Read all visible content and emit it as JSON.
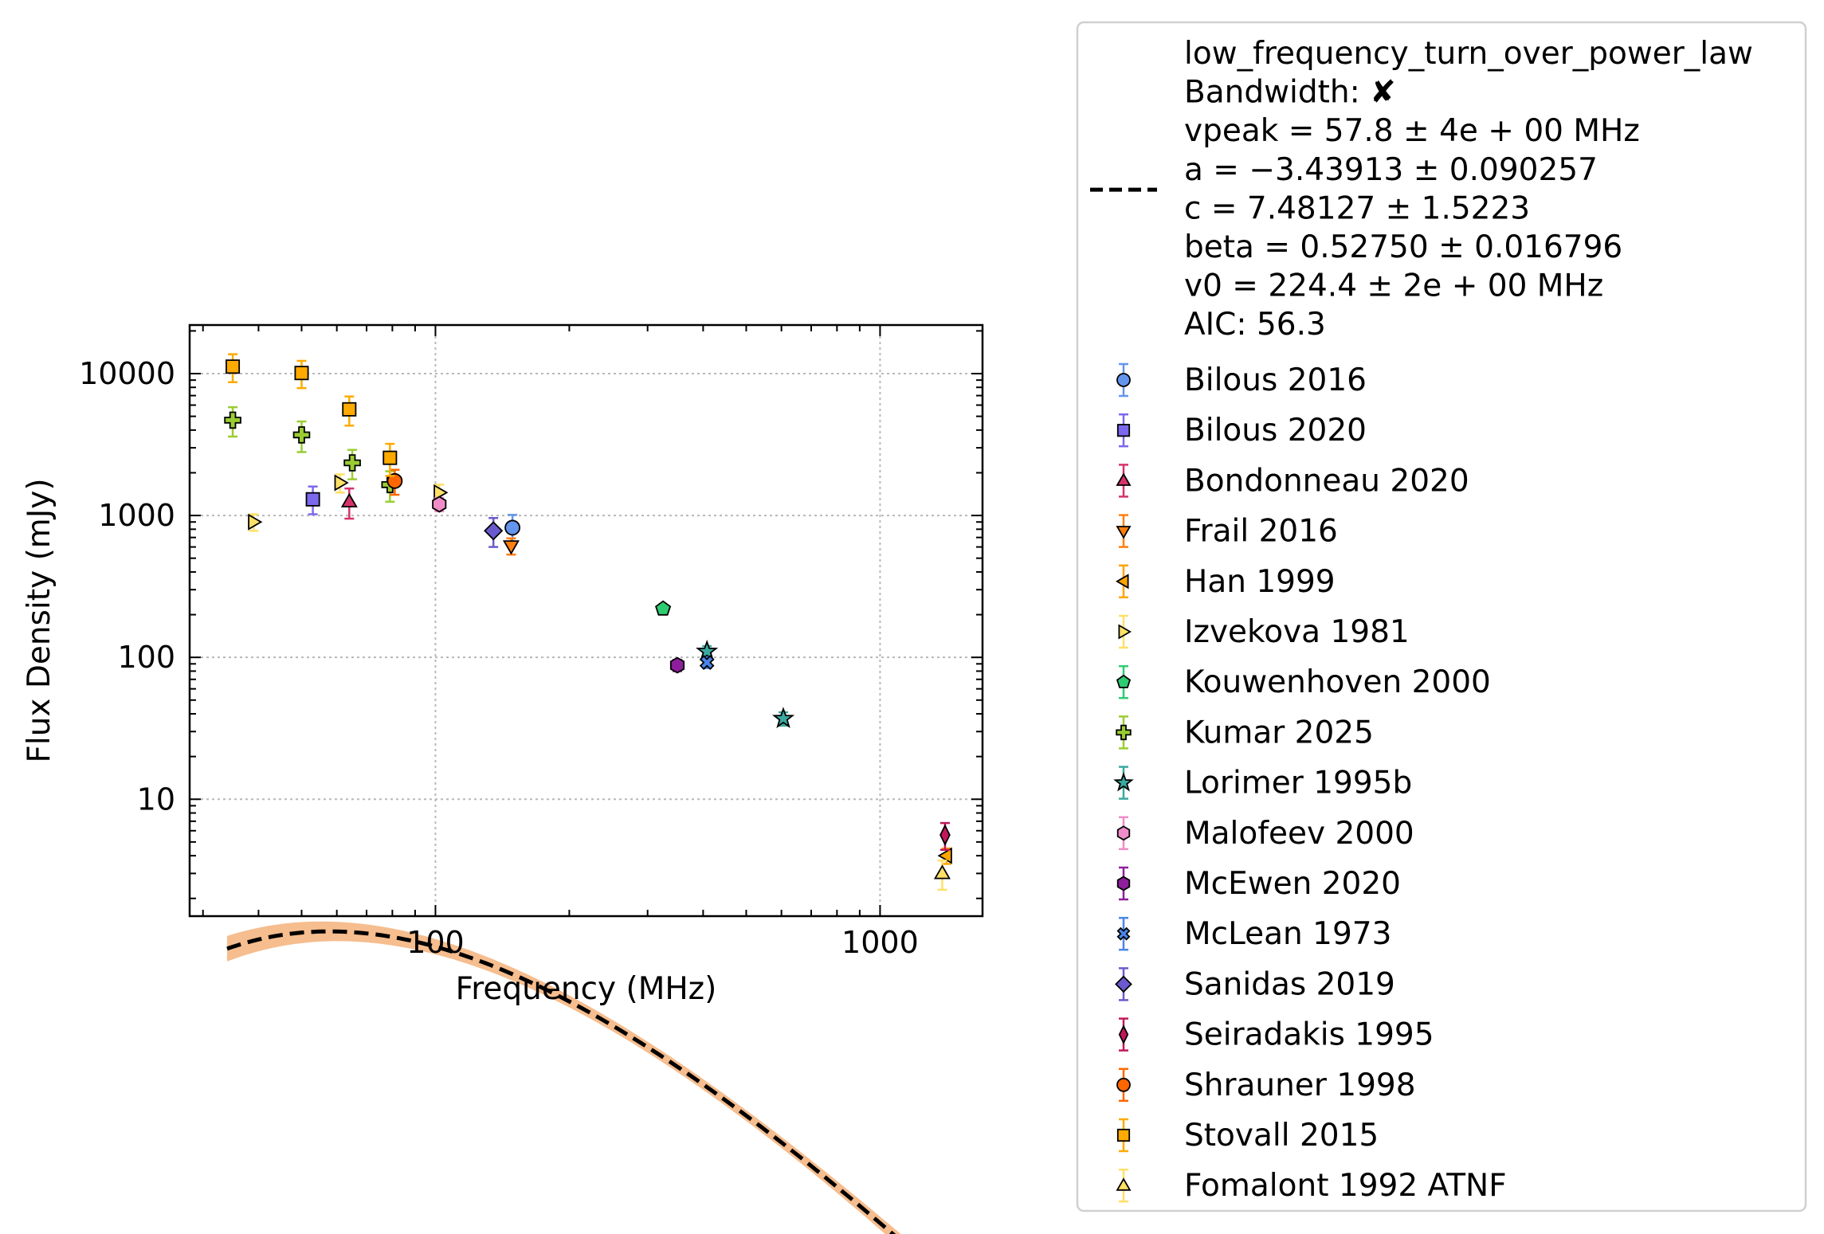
{
  "chart_data": {
    "type": "scatter",
    "title": "",
    "xlabel": "Frequency (MHz)",
    "ylabel": "Flux Density (mJy)",
    "xscale": "log",
    "yscale": "log",
    "xlim": [
      28,
      1700
    ],
    "ylim": [
      1.5,
      22000
    ],
    "xticks": [
      {
        "value": 100,
        "label": "100"
      },
      {
        "value": 1000,
        "label": "1000"
      }
    ],
    "yticks": [
      {
        "value": 10,
        "label": "10"
      },
      {
        "value": 100,
        "label": "100"
      },
      {
        "value": 1000,
        "label": "1000"
      },
      {
        "value": 10000,
        "label": "10000"
      }
    ],
    "grid": true,
    "legend_position": "outside-right",
    "fit": {
      "model": "low_frequency_turn_over_power_law",
      "label_lines": [
        "low_frequency_turn_over_power_law",
        "Bandwidth: ✘",
        "vpeak = 57.8 ± 4e + 00 MHz",
        "a = −3.43913 ± 0.090257",
        "c = 7.48127 ± 1.5223",
        "beta = 0.52750 ± 0.016796",
        "v0 = 224.4 ± 2e + 00 MHz",
        "AIC: 56.3"
      ],
      "params": {
        "vpeak": 57.8,
        "a": -3.43913,
        "c": 7.48127,
        "beta": 0.5275,
        "v0": 224.4
      },
      "x_range": [
        34,
        1450
      ],
      "line_color": "#000000",
      "band_color": "#f5b27a"
    },
    "series": [
      {
        "name": "Bilous 2016",
        "marker": "circle",
        "color": "#6495ed",
        "points": [
          {
            "x": 149,
            "y": 820,
            "yerr": [
              190,
              190
            ]
          }
        ]
      },
      {
        "name": "Bilous 2020",
        "marker": "square",
        "color": "#7b68ee",
        "points": [
          {
            "x": 53,
            "y": 1300,
            "yerr": [
              280,
              300
            ]
          }
        ]
      },
      {
        "name": "Bondonneau 2020",
        "marker": "triangle-up",
        "color": "#d6336c",
        "points": [
          {
            "x": 64,
            "y": 1250,
            "yerr": [
              300,
              300
            ]
          }
        ]
      },
      {
        "name": "Frail 2016",
        "marker": "triangle-down",
        "color": "#ff7f0e",
        "points": [
          {
            "x": 148,
            "y": 610,
            "yerr": [
              80,
              80
            ]
          }
        ]
      },
      {
        "name": "Han 1999",
        "marker": "triangle-left",
        "color": "#ffa500",
        "points": [
          {
            "x": 1410,
            "y": 4.0,
            "yerr": [
              0.5,
              0.5
            ]
          }
        ]
      },
      {
        "name": "Izvekova 1981",
        "marker": "triangle-right",
        "color": "#ffe066",
        "points": [
          {
            "x": 39,
            "y": 900,
            "yerr": [
              120,
              120
            ]
          },
          {
            "x": 61,
            "y": 1700,
            "yerr": [
              250,
              250
            ]
          },
          {
            "x": 102,
            "y": 1450,
            "yerr": [
              200,
              200
            ]
          }
        ]
      },
      {
        "name": "Kouwenhoven 2000",
        "marker": "pentagon",
        "color": "#2ecc71",
        "points": [
          {
            "x": 325,
            "y": 220,
            "yerr": [
              15,
              15
            ]
          }
        ]
      },
      {
        "name": "Kumar 2025",
        "marker": "plus",
        "color": "#9acd32",
        "points": [
          {
            "x": 35,
            "y": 4700,
            "yerr": [
              1100,
              1100
            ]
          },
          {
            "x": 50,
            "y": 3700,
            "yerr": [
              900,
              900
            ]
          },
          {
            "x": 65,
            "y": 2350,
            "yerr": [
              550,
              550
            ]
          },
          {
            "x": 79,
            "y": 1650,
            "yerr": [
              400,
              400
            ]
          }
        ]
      },
      {
        "name": "Lorimer 1995b",
        "marker": "star",
        "color": "#3aa99f",
        "points": [
          {
            "x": 408,
            "y": 110,
            "yerr": [
              10,
              10
            ]
          },
          {
            "x": 606,
            "y": 37,
            "yerr": [
              4,
              4
            ]
          }
        ]
      },
      {
        "name": "Malofeev 2000",
        "marker": "hexagon",
        "color": "#f08cc8",
        "points": [
          {
            "x": 102,
            "y": 1200,
            "yerr": [
              130,
              130
            ]
          }
        ]
      },
      {
        "name": "McEwen 2020",
        "marker": "hexagon",
        "color": "#8e1e9c",
        "points": [
          {
            "x": 350,
            "y": 88,
            "yerr": [
              8,
              8
            ]
          }
        ]
      },
      {
        "name": "McLean 1973",
        "marker": "x",
        "color": "#4a86e8",
        "points": [
          {
            "x": 408,
            "y": 92,
            "yerr": [
              8,
              8
            ]
          }
        ]
      },
      {
        "name": "Sanidas 2019",
        "marker": "diamond",
        "color": "#6a5acd",
        "points": [
          {
            "x": 135,
            "y": 780,
            "yerr": [
              180,
              180
            ]
          }
        ]
      },
      {
        "name": "Seiradakis 1995",
        "marker": "thin-diamond",
        "color": "#c2185b",
        "points": [
          {
            "x": 1400,
            "y": 5.6,
            "yerr": [
              1.2,
              1.2
            ]
          }
        ]
      },
      {
        "name": "Shrauner 1998",
        "marker": "circle",
        "color": "#ff6600",
        "points": [
          {
            "x": 81,
            "y": 1750,
            "yerr": [
              350,
              350
            ]
          }
        ]
      },
      {
        "name": "Stovall 2015",
        "marker": "square",
        "color": "#ffaa00",
        "points": [
          {
            "x": 35,
            "y": 11200,
            "yerr": [
              2500,
              2500
            ]
          },
          {
            "x": 50,
            "y": 10100,
            "yerr": [
              2200,
              2200
            ]
          },
          {
            "x": 64,
            "y": 5600,
            "yerr": [
              1300,
              1300
            ]
          },
          {
            "x": 79,
            "y": 2550,
            "yerr": [
              650,
              650
            ]
          }
        ]
      },
      {
        "name": "Fomalont 1992 ATNF",
        "marker": "triangle-up",
        "color": "#ffe066",
        "points": [
          {
            "x": 1380,
            "y": 3.0,
            "yerr": [
              0.7,
              0.7
            ]
          }
        ]
      }
    ]
  }
}
